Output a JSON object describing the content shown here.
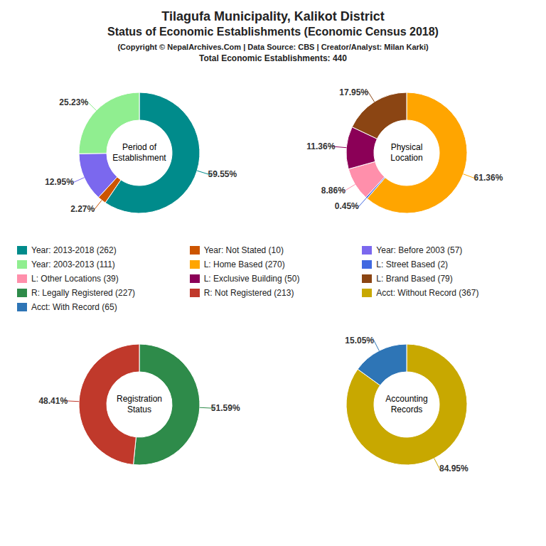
{
  "title": [
    "Tilagufa Municipality, Kalikot District",
    "Status of Economic Establishments (Economic Census 2018)"
  ],
  "subtitle": "(Copyright © NepalArchives.Com | Data Source: CBS | Creator/Analyst: Milan Karki)",
  "annotations": [
    "Total Economic Establishments: 440"
  ],
  "chart_data": [
    {
      "type": "pie",
      "title": "Period of\nEstablishment",
      "categories": [
        "Year: 2013-2018 (262)",
        "Year: Not Stated (10)",
        "Year: Before 2003 (57)",
        "Year: 2003-2013 (111)"
      ],
      "values": [
        59.55,
        2.27,
        12.95,
        25.23
      ],
      "value_labels": [
        "59.55%",
        "2.27%",
        "12.95%",
        "25.23%"
      ],
      "colors": [
        "#008B8B",
        "#CC5500",
        "#7B68EE",
        "#90EE90"
      ],
      "data_labels": true
    },
    {
      "type": "pie",
      "title": "Physical\nLocation",
      "categories": [
        "L: Home Based (270)",
        "L: Street Based (2)",
        "L: Other Locations (39)",
        "L: Exclusive Building (50)",
        "L: Brand Based (79)"
      ],
      "values": [
        61.36,
        0.45,
        8.86,
        11.36,
        17.95
      ],
      "value_labels": [
        "61.36%",
        "0.45%",
        "8.86%",
        "11.36%",
        "17.95%"
      ],
      "colors": [
        "#FFA500",
        "#4169E1",
        "#FF8FAB",
        "#8B0057",
        "#8B4513"
      ],
      "data_labels": true
    },
    {
      "type": "pie",
      "title": "Registration\nStatus",
      "categories": [
        "R: Legally Registered (227)",
        "R: Not Registered (213)"
      ],
      "values": [
        51.59,
        48.41
      ],
      "value_labels": [
        "51.59%",
        "48.41%"
      ],
      "colors": [
        "#2E8B4A",
        "#C0392B"
      ],
      "data_labels": true
    },
    {
      "type": "pie",
      "title": "Accounting\nRecords",
      "categories": [
        "Acct: Without Record (367)",
        "Acct: With Record (65)"
      ],
      "values": [
        84.95,
        15.05
      ],
      "value_labels": [
        "84.95%",
        "15.05%"
      ],
      "colors": [
        "#C8A800",
        "#2E75B6"
      ],
      "data_labels": true
    }
  ]
}
